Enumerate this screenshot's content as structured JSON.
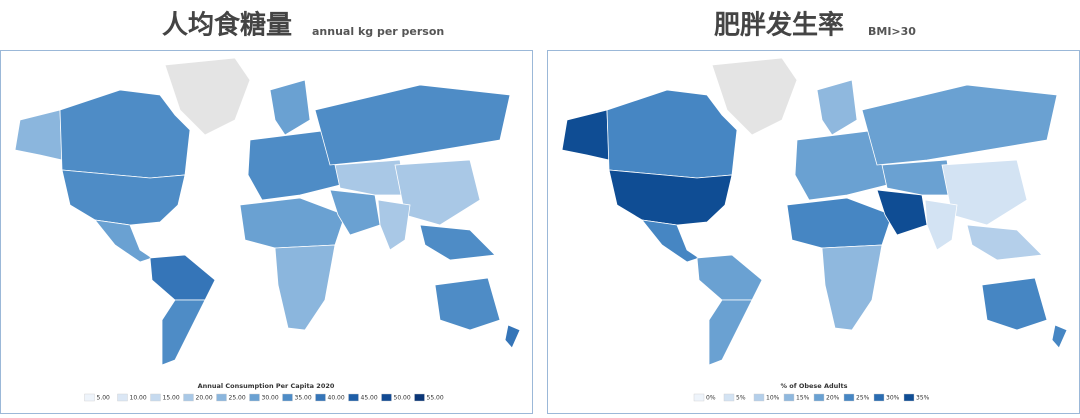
{
  "left": {
    "title": "人均食糖量",
    "subtitle": "annual kg per person",
    "legend": {
      "title": "Annual Consumption Per Capita 2020",
      "items": [
        {
          "label": "5.00",
          "color": "#eef4fb"
        },
        {
          "label": "10.00",
          "color": "#dbe7f5"
        },
        {
          "label": "15.00",
          "color": "#c6daef"
        },
        {
          "label": "20.00",
          "color": "#a9c8e6"
        },
        {
          "label": "25.00",
          "color": "#8bb6dd"
        },
        {
          "label": "30.00",
          "color": "#6aa1d2"
        },
        {
          "label": "35.00",
          "color": "#4e8cc6"
        },
        {
          "label": "40.00",
          "color": "#3575b8"
        },
        {
          "label": "45.00",
          "color": "#1e5ea7"
        },
        {
          "label": "50.00",
          "color": "#124a93"
        },
        {
          "label": "55.00",
          "color": "#0a3677"
        }
      ]
    }
  },
  "right": {
    "title": "肥胖发生率",
    "subtitle": "BMI>30",
    "legend": {
      "title": "% of Obese Adults",
      "items": [
        {
          "label": "0%",
          "color": "#eef4fb"
        },
        {
          "label": "5%",
          "color": "#d3e3f3"
        },
        {
          "label": "10%",
          "color": "#b4cfea"
        },
        {
          "label": "15%",
          "color": "#8fb8de"
        },
        {
          "label": "20%",
          "color": "#6aa1d2"
        },
        {
          "label": "25%",
          "color": "#4686c3"
        },
        {
          "label": "30%",
          "color": "#2a6cb1"
        },
        {
          "label": "35%",
          "color": "#0f4d94"
        }
      ]
    }
  }
}
